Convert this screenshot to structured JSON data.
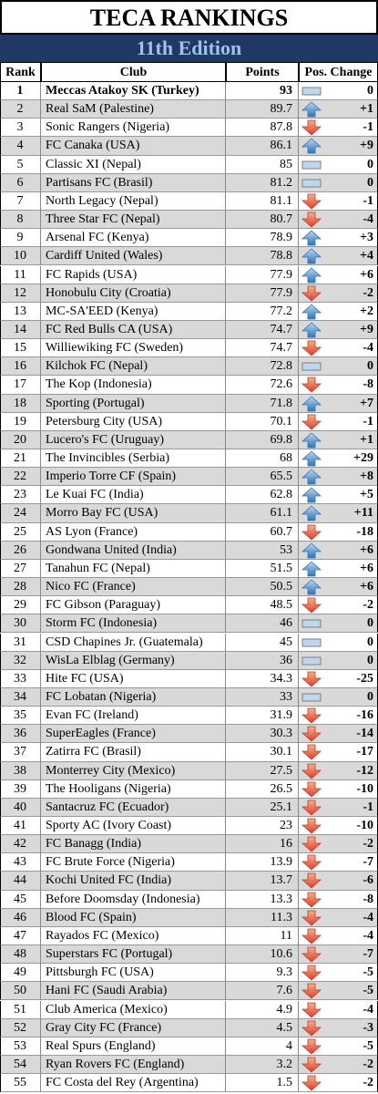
{
  "header": {
    "title": "TECA RANKINGS",
    "subtitle": "11th Edition"
  },
  "table": {
    "columns": [
      "Rank",
      "Club",
      "Points",
      "Pos. Change"
    ],
    "rows": [
      [
        1,
        "Meccas Atakoy SK (Turkey)",
        93,
        "0"
      ],
      [
        2,
        "Real SaM (Palestine)",
        89.7,
        "+1"
      ],
      [
        3,
        "Sonic Rangers (Nigeria)",
        87.8,
        "-1"
      ],
      [
        4,
        "FC Canaka (USA)",
        86.1,
        "+9"
      ],
      [
        5,
        "Classic XI (Nepal)",
        85,
        "0"
      ],
      [
        6,
        "Partisans FC (Brasil)",
        81.2,
        "0"
      ],
      [
        7,
        "North Legacy (Nepal)",
        81.1,
        "-1"
      ],
      [
        8,
        "Three Star FC (Nepal)",
        80.7,
        "-4"
      ],
      [
        9,
        "Arsenal FC (Kenya)",
        78.9,
        "+3"
      ],
      [
        10,
        "Cardiff United (Wales)",
        78.8,
        "+4"
      ],
      [
        11,
        "FC Rapids (USA)",
        77.9,
        "+6"
      ],
      [
        12,
        "Honobulu City (Croatia)",
        77.9,
        "-2"
      ],
      [
        13,
        "MC-SA'EED (Kenya)",
        77.2,
        "+2"
      ],
      [
        14,
        "FC Red Bulls CA (USA)",
        74.7,
        "+9"
      ],
      [
        15,
        "Williewiking FC (Sweden)",
        74.7,
        "-4"
      ],
      [
        16,
        "Kilchok FC (Nepal)",
        72.8,
        "0"
      ],
      [
        17,
        "The Kop (Indonesia)",
        72.6,
        "-8"
      ],
      [
        18,
        "Sporting (Portugal)",
        71.8,
        "+7"
      ],
      [
        19,
        "Petersburg City (USA)",
        70.1,
        "-1"
      ],
      [
        20,
        "Lucero's FC (Uruguay)",
        69.8,
        "+1"
      ],
      [
        21,
        "The Invincibles (Serbia)",
        68,
        "+29"
      ],
      [
        22,
        "Imperio Torre CF (Spain)",
        65.5,
        "+8"
      ],
      [
        23,
        "Le Kuai FC (India)",
        62.8,
        "+5"
      ],
      [
        24,
        "Morro Bay FC (USA)",
        61.1,
        "+11"
      ],
      [
        25,
        "AS Lyon (France)",
        60.7,
        "-18"
      ],
      [
        26,
        "Gondwana United (India)",
        53,
        "+6"
      ],
      [
        27,
        "Tanahun FC (Nepal)",
        51.5,
        "+6"
      ],
      [
        28,
        "Nico FC (France)",
        50.5,
        "+6"
      ],
      [
        29,
        "FC Gibson (Paraguay)",
        48.5,
        "-2"
      ],
      [
        30,
        "Storm FC (Indonesia)",
        46,
        "0"
      ],
      [
        31,
        "CSD Chapines Jr. (Guatemala)",
        45,
        "0"
      ],
      [
        32,
        "WisLa Elblag (Germany)",
        36,
        "0"
      ],
      [
        33,
        "Hite FC (USA)",
        34.3,
        "-25"
      ],
      [
        34,
        "FC Lobatan (Nigeria)",
        33,
        "0"
      ],
      [
        35,
        "Evan FC (Ireland)",
        31.9,
        "-16"
      ],
      [
        36,
        "SuperEagles (France)",
        30.3,
        "-14"
      ],
      [
        37,
        "Zatirra FC (Brasil)",
        30.1,
        "-17"
      ],
      [
        38,
        "Monterrey City (Mexico)",
        27.5,
        "-12"
      ],
      [
        39,
        "The Hooligans (Nigeria)",
        26.5,
        "-10"
      ],
      [
        40,
        "Santacruz FC (Ecuador)",
        25.1,
        "-1"
      ],
      [
        41,
        "Sporty AC (Ivory Coast)",
        23,
        "-10"
      ],
      [
        42,
        "FC Banagg (India)",
        16,
        "-2"
      ],
      [
        43,
        "FC Brute Force (Nigeria)",
        13.9,
        "-7"
      ],
      [
        44,
        "Kochi United FC (India)",
        13.7,
        "-6"
      ],
      [
        45,
        "Before Doomsday (Indonesia)",
        13.3,
        "-8"
      ],
      [
        46,
        "Blood FC (Spain)",
        11.3,
        "-4"
      ],
      [
        47,
        "Rayados FC (Mexico)",
        11,
        "-4"
      ],
      [
        48,
        "Superstars FC (Portugal)",
        10.6,
        "-7"
      ],
      [
        49,
        "Pittsburgh FC (USA)",
        9.3,
        "-5"
      ],
      [
        50,
        "Hani FC (Saudi Arabia)",
        7.6,
        "-5"
      ],
      [
        51,
        "Club America (Mexico)",
        4.9,
        "-4"
      ],
      [
        52,
        "Gray City FC (France)",
        4.5,
        "-3"
      ],
      [
        53,
        "Real Spurs (England)",
        4,
        "-5"
      ],
      [
        54,
        "Ryan Rovers FC (England)",
        3.2,
        "-2"
      ],
      [
        55,
        "FC Costa del Rey (Argentina)",
        1.5,
        "-2"
      ]
    ]
  }
}
